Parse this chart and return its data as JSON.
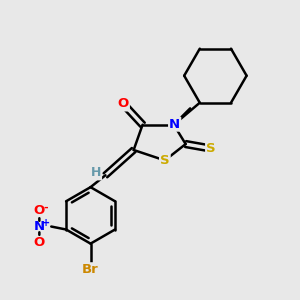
{
  "background_color": "#e8e8e8",
  "atom_colors": {
    "C": "#000000",
    "N": "#0000ff",
    "O": "#ff0000",
    "S": "#ccaa00",
    "Br": "#cc8800",
    "H": "#6699aa"
  },
  "bond_color": "#000000",
  "bond_width": 1.8,
  "figsize": [
    3.0,
    3.0
  ],
  "dpi": 100
}
